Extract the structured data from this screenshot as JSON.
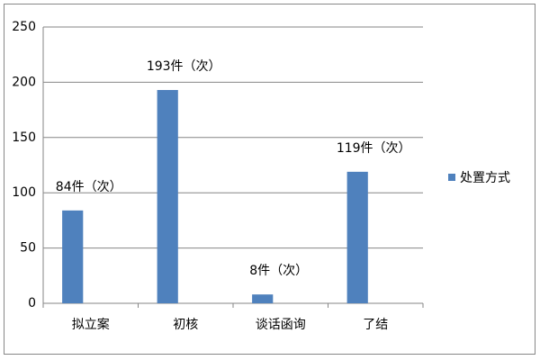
{
  "chart_data": {
    "type": "bar",
    "categories": [
      "拟立案",
      "初核",
      "谈话函询",
      "了结"
    ],
    "series": [
      {
        "name": "处置方式",
        "color": "#4f81bd",
        "values": [
          84,
          193,
          8,
          119
        ],
        "value_labels": [
          "84件（次）",
          "193件（次）",
          "8件（次）",
          "119件（次）"
        ]
      }
    ],
    "ylim": [
      0,
      250
    ],
    "yticks": [
      0,
      50,
      100,
      150,
      200,
      250
    ],
    "grid": true,
    "legend": "right"
  }
}
